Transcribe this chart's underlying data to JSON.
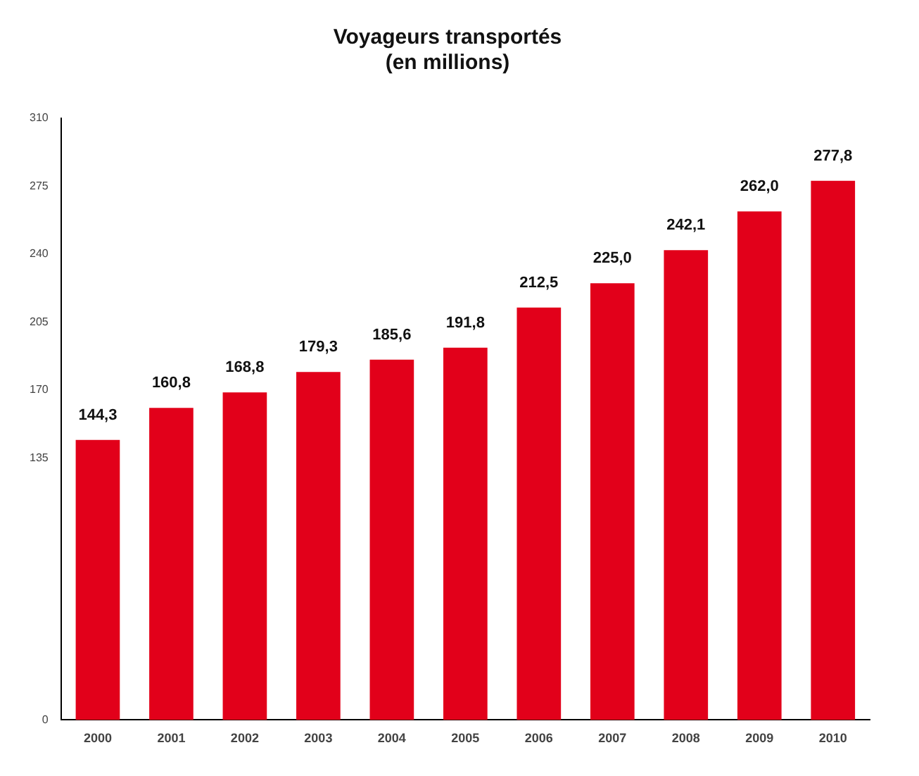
{
  "chart_data": {
    "type": "bar",
    "title": [
      "Voyageurs transportés",
      "(en millions)"
    ],
    "categories": [
      "2000",
      "2001",
      "2002",
      "2003",
      "2004",
      "2005",
      "2006",
      "2007",
      "2008",
      "2009",
      "2010"
    ],
    "values": [
      144.3,
      160.8,
      168.8,
      179.3,
      185.6,
      191.8,
      212.5,
      225.0,
      242.1,
      262.0,
      277.8
    ],
    "value_labels": [
      "144,3",
      "160,8",
      "168,8",
      "179,3",
      "185,6",
      "191,8",
      "212,5",
      "225,0",
      "242,1",
      "262,0",
      "277,8"
    ],
    "color": "#e2001a",
    "ylim": [
      0,
      310
    ],
    "yticks": [
      0,
      135,
      170,
      205,
      240,
      275,
      310
    ],
    "grid": false,
    "legend": false
  }
}
